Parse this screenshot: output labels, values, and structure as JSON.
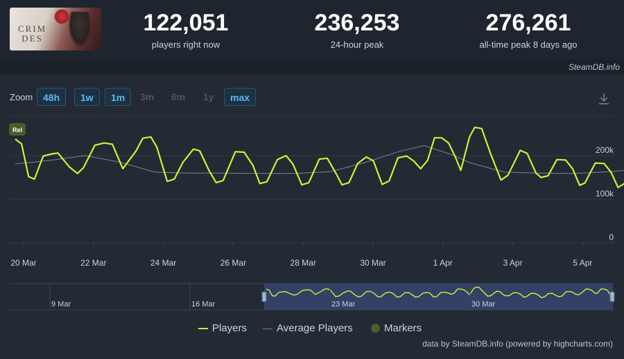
{
  "stats": [
    {
      "value": "122,051",
      "label": "players right now"
    },
    {
      "value": "236,253",
      "label": "24-hour peak"
    },
    {
      "value": "276,261",
      "label": "all-time peak 8 days ago"
    }
  ],
  "game_thumb_text": "CRIMSON DESERT",
  "credit_top": "SteamDB.info",
  "zoom": {
    "label": "Zoom",
    "buttons": [
      {
        "label": "48h",
        "active": true
      },
      {
        "label": "1w",
        "active": true
      },
      {
        "label": "1m",
        "active": true
      },
      {
        "label": "3m",
        "active": false
      },
      {
        "label": "6m",
        "active": false
      },
      {
        "label": "1y",
        "active": false
      },
      {
        "label": "max",
        "active": true
      }
    ]
  },
  "legend": {
    "players": "Players",
    "average": "Average Players",
    "markers": "Markers"
  },
  "credit_bottom": "data by SteamDB.info (powered by highcharts.com)",
  "colors": {
    "players": "#c9f536",
    "average": "#7d8792",
    "marker": "#46602c",
    "accent": "#59b8f5",
    "navigator_mask": "#3a4a7a"
  },
  "chart_data": {
    "type": "line",
    "x_axis": {
      "start": "2025-03-20",
      "end": "2025-04-05",
      "tick_labels": [
        "20 Mar",
        "22 Mar",
        "24 Mar",
        "26 Mar",
        "28 Mar",
        "30 Mar",
        "1 Apr",
        "3 Apr",
        "5 Apr"
      ]
    },
    "y_axis": {
      "min": 0,
      "max": 276261,
      "tick_labels": [
        "0",
        "100k",
        "200k"
      ],
      "tick_values": [
        0,
        100000,
        200000
      ],
      "grid": true
    },
    "markers": [
      {
        "label": "Rel",
        "x": 0
      }
    ],
    "series": [
      {
        "name": "Players",
        "values": [
          [
            0,
            238
          ],
          [
            0.18,
            227
          ],
          [
            0.38,
            152
          ],
          [
            0.55,
            146
          ],
          [
            0.8,
            199
          ],
          [
            1.05,
            204
          ],
          [
            1.22,
            206
          ],
          [
            1.55,
            174
          ],
          [
            1.78,
            159
          ],
          [
            1.95,
            172
          ],
          [
            2.28,
            224
          ],
          [
            2.55,
            229
          ],
          [
            2.78,
            226
          ],
          [
            3.08,
            170
          ],
          [
            3.45,
            210
          ],
          [
            3.65,
            240
          ],
          [
            3.88,
            243
          ],
          [
            4.05,
            220
          ],
          [
            4.35,
            141
          ],
          [
            4.55,
            146
          ],
          [
            4.8,
            185
          ],
          [
            5.1,
            215
          ],
          [
            5.28,
            211
          ],
          [
            5.55,
            165
          ],
          [
            5.75,
            138
          ],
          [
            5.95,
            143
          ],
          [
            6.3,
            209
          ],
          [
            6.55,
            208
          ],
          [
            6.8,
            178
          ],
          [
            7.0,
            136
          ],
          [
            7.2,
            140
          ],
          [
            7.5,
            191
          ],
          [
            7.75,
            200
          ],
          [
            7.95,
            180
          ],
          [
            8.2,
            133
          ],
          [
            8.4,
            138
          ],
          [
            8.7,
            192
          ],
          [
            8.93,
            194
          ],
          [
            9.2,
            156
          ],
          [
            9.35,
            133
          ],
          [
            9.55,
            138
          ],
          [
            9.8,
            182
          ],
          [
            10.05,
            197
          ],
          [
            10.25,
            188
          ],
          [
            10.5,
            134
          ],
          [
            10.7,
            142
          ],
          [
            10.95,
            195
          ],
          [
            11.2,
            199
          ],
          [
            11.4,
            188
          ],
          [
            11.6,
            170
          ],
          [
            11.8,
            189
          ],
          [
            12.0,
            241
          ],
          [
            12.2,
            241
          ],
          [
            12.4,
            229
          ],
          [
            12.6,
            196
          ],
          [
            12.75,
            166
          ],
          [
            13.0,
            243
          ],
          [
            13.15,
            265
          ],
          [
            13.35,
            262
          ],
          [
            13.6,
            205
          ],
          [
            13.9,
            144
          ],
          [
            14.1,
            155
          ],
          [
            14.45,
            212
          ],
          [
            14.65,
            205
          ],
          [
            14.9,
            160
          ],
          [
            15.05,
            150
          ],
          [
            15.25,
            154
          ],
          [
            15.5,
            191
          ],
          [
            15.75,
            190
          ],
          [
            15.95,
            170
          ],
          [
            16.15,
            132
          ],
          [
            16.3,
            137
          ],
          [
            16.6,
            183
          ],
          [
            16.85,
            182
          ],
          [
            17.05,
            162
          ],
          [
            17.25,
            127
          ],
          [
            17.45,
            137
          ],
          [
            17.7,
            181
          ],
          [
            17.95,
            182
          ],
          [
            18.15,
            156
          ],
          [
            18.35,
            138
          ],
          [
            18.55,
            147
          ],
          [
            18.8,
            205
          ],
          [
            19.0,
            208
          ],
          [
            19.2,
            200
          ],
          [
            19.4,
            170
          ],
          [
            19.6,
            164
          ],
          [
            19.8,
            193
          ],
          [
            20.05,
            242
          ],
          [
            20.2,
            240
          ],
          [
            20.4,
            225
          ],
          [
            20.6,
            187
          ],
          [
            20.75,
            184
          ],
          [
            21.0,
            242
          ],
          [
            21.25,
            238
          ],
          [
            21.4,
            222
          ],
          [
            21.55,
            170
          ],
          [
            21.65,
            144
          ]
        ]
      },
      {
        "name": "Average Players",
        "values": [
          [
            0,
            181
          ],
          [
            1.0,
            189
          ],
          [
            2.0,
            200
          ],
          [
            3.0,
            185
          ],
          [
            4.0,
            162
          ],
          [
            5.0,
            160
          ],
          [
            6.0,
            160
          ],
          [
            7.0,
            159
          ],
          [
            8.0,
            159
          ],
          [
            9.0,
            163
          ],
          [
            10.0,
            184
          ],
          [
            11.0,
            210
          ],
          [
            11.7,
            223
          ],
          [
            12.5,
            202
          ],
          [
            13.0,
            184
          ],
          [
            14.0,
            162
          ],
          [
            15.0,
            160
          ],
          [
            16.0,
            159
          ],
          [
            17.0,
            163
          ],
          [
            18.0,
            170
          ],
          [
            19.0,
            184
          ],
          [
            20.0,
            194
          ],
          [
            21.0,
            203
          ],
          [
            21.65,
            206
          ]
        ]
      }
    ],
    "navigator": {
      "tick_labels": [
        "9 Mar",
        "16 Mar",
        "23 Mar",
        "30 Mar"
      ]
    }
  }
}
